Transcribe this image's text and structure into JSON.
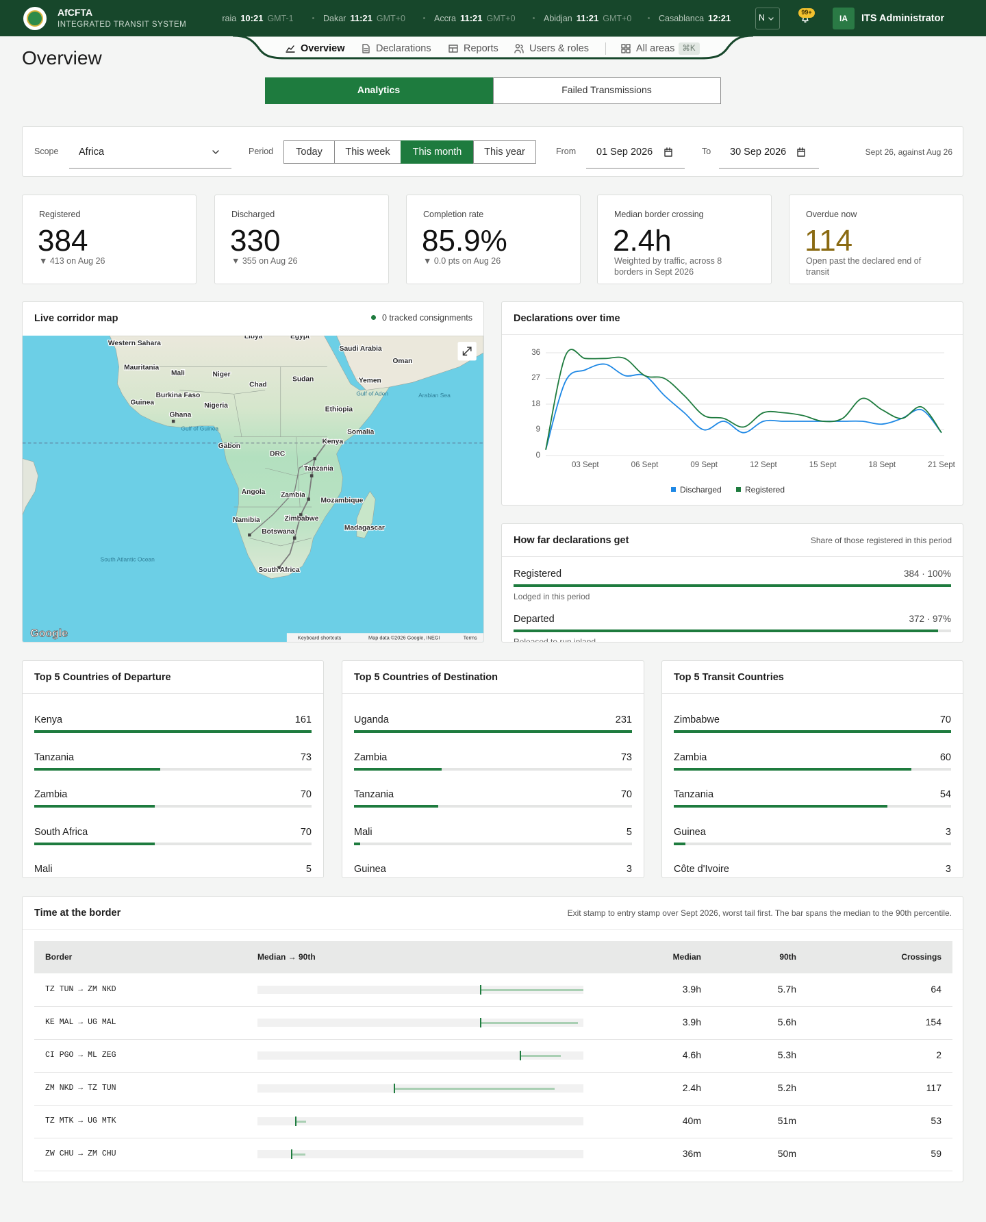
{
  "header": {
    "brand": "AfCFTA",
    "subtitle": "INTEGRATED TRANSIT SYSTEM",
    "clocks": [
      {
        "city": "Praia",
        "time": "10:21",
        "zone": "GMT-1"
      },
      {
        "city": "Dakar",
        "time": "11:21",
        "zone": "GMT+0"
      },
      {
        "city": "Accra",
        "time": "11:21",
        "zone": "GMT+0"
      },
      {
        "city": "Abidjan",
        "time": "11:21",
        "zone": "GMT+0"
      },
      {
        "city": "Casablanca",
        "time": "12:21"
      }
    ],
    "language": "N",
    "notifications": "99+",
    "user_initials": "IA",
    "user_name": "ITS Administrator"
  },
  "nav": {
    "items": [
      "Overview",
      "Declarations",
      "Reports",
      "Users & roles",
      "All areas"
    ],
    "shortcut": "⌘K",
    "active": 0
  },
  "page_title": "Overview",
  "tabs": {
    "items": [
      "Analytics",
      "Failed Transmissions"
    ],
    "active": 0
  },
  "filters": {
    "scope_label": "Scope",
    "scope": "Africa",
    "period_label": "Period",
    "periods": [
      "Today",
      "This week",
      "This month",
      "This year"
    ],
    "active_period": 2,
    "from_label": "From",
    "from": "01 Sep 2026",
    "to_label": "To",
    "to": "30 Sep 2026",
    "comparison": "Sept 26, against Aug 26"
  },
  "kpis": [
    {
      "label": "Registered",
      "value": 384,
      "note": "▼ 413 on Aug 26"
    },
    {
      "label": "Discharged",
      "value": 330,
      "note": "▼ 355 on Aug 26"
    },
    {
      "label": "Completion rate",
      "value": "85.9%",
      "note": "▼ 0.0 pts on Aug 26"
    },
    {
      "label": "Median border crossing",
      "value": "2.4h",
      "note": "Weighted by traffic, across 8 borders in Sept 2026"
    },
    {
      "label": "Overdue now",
      "value": 114,
      "note": "Open past the declared end of transit",
      "color": "#8a6a12"
    }
  ],
  "map": {
    "title": "Live corridor map",
    "status": "0 tracked consignments",
    "labels": [
      "Libya",
      "Egypt",
      "Western Sahara",
      "Saudi Arabia",
      "Oman",
      "Mauritania",
      "Mali",
      "Niger",
      "Chad",
      "Sudan",
      "Yemen",
      "Burkina Faso",
      "Guinea",
      "Nigeria",
      "Gulf of Aden",
      "Arabian Sea",
      "Ethiopia",
      "Ghana",
      "Gulf of Guinea",
      "Somalia",
      "Kenya",
      "Gabon",
      "DRC",
      "Tanzania",
      "Angola",
      "Zambia",
      "Mozambique",
      "Namibia",
      "Zimbabwe",
      "Botswana",
      "Madagascar",
      "South Africa",
      "South Atlantic Ocean"
    ],
    "attribution": {
      "logo": "Google",
      "shortcuts": "Keyboard shortcuts",
      "data": "Map data ©2026 Google, INEGI",
      "terms": "Terms"
    }
  },
  "chart_data": [
    {
      "type": "line",
      "title": "Declarations over time",
      "categories": [
        null,
        null,
        "03 Sept",
        null,
        null,
        "06 Sept",
        null,
        null,
        "09 Sept",
        null,
        null,
        "12 Sept",
        null,
        null,
        "15 Sept",
        null,
        null,
        "18 Sept",
        null,
        null,
        "21 Sept"
      ],
      "series": [
        {
          "name": "Discharged",
          "color": "#1e88e5",
          "values": [
            2,
            26,
            30,
            32,
            28,
            28,
            21,
            15,
            9,
            12,
            8,
            12,
            12,
            12,
            12,
            12,
            12,
            11,
            13,
            16,
            8
          ]
        },
        {
          "name": "Registered",
          "color": "#1e7b3e",
          "values": [
            2,
            35,
            34,
            34,
            34,
            28,
            27,
            21,
            14,
            13,
            10,
            15,
            15,
            14,
            12,
            13,
            20,
            16,
            13,
            17,
            8
          ]
        }
      ],
      "ylim": [
        0,
        36
      ],
      "yticks": [
        0,
        9,
        18,
        27,
        36
      ],
      "grid": true,
      "legend": "bottom"
    },
    {
      "type": "bar",
      "title": "How far declarations get",
      "subtitle": "Share of those registered in this period",
      "categories": [
        "Registered",
        "Departed"
      ],
      "descriptions": [
        "Lodged in this period",
        "Released to run inland"
      ],
      "values": [
        100,
        97
      ],
      "value_labels": [
        "384 · 100%",
        "372 · 97%"
      ],
      "xlim": [
        0,
        100
      ],
      "color": "#1e7b3e"
    },
    {
      "type": "bar",
      "title": "Top 5 Countries of Departure",
      "categories": [
        "Kenya",
        "Tanzania",
        "Zambia",
        "South Africa",
        "Mali"
      ],
      "values": [
        161,
        73,
        70,
        70,
        5
      ],
      "color": "#1e7b3e"
    },
    {
      "type": "bar",
      "title": "Top 5 Countries of Destination",
      "categories": [
        "Uganda",
        "Zambia",
        "Tanzania",
        "Mali",
        "Guinea"
      ],
      "values": [
        231,
        73,
        70,
        5,
        3
      ],
      "color": "#1e7b3e"
    },
    {
      "type": "bar",
      "title": "Top 5 Transit Countries",
      "categories": [
        "Zimbabwe",
        "Zambia",
        "Tanzania",
        "Guinea",
        "Côte d'Ivoire"
      ],
      "values": [
        70,
        60,
        54,
        3,
        3
      ],
      "color": "#1e7b3e"
    }
  ],
  "border_table": {
    "title": "Time at the border",
    "subtitle": "Exit stamp to entry stamp over Sept 2026, worst tail first. The bar spans the median to the 90th percentile.",
    "columns": [
      "Border",
      "Median → 90th",
      "Median",
      "90th",
      "Crossings"
    ],
    "borders": [
      "TZ TUN → ZM NKD",
      "KE MAL → UG MAL",
      "CI PGO → ML ZEG",
      "ZM NKD → TZ TUN",
      "TZ MTK → UG MTK",
      "ZW CHU → ZM CHU"
    ],
    "median": {
      "values": [
        234,
        234,
        276,
        144,
        40,
        36
      ],
      "value_labels": [
        "3.9h",
        "3.9h",
        "4.6h",
        "2.4h",
        "40m",
        "36m"
      ]
    },
    "p90": {
      "values": [
        342,
        336,
        318,
        312,
        51,
        50
      ],
      "value_labels": [
        "5.7h",
        "5.6h",
        "5.3h",
        "5.2h",
        "51m",
        "50m"
      ]
    },
    "crossings": [
      64,
      154,
      2,
      117,
      53,
      59
    ],
    "colors": {
      "range": "#a9cfb3",
      "median": "#1e7b3e"
    }
  }
}
